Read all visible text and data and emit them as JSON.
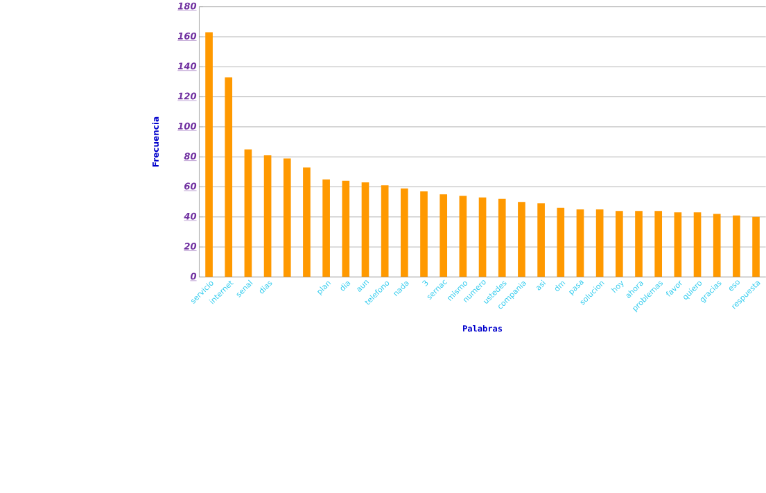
{
  "chart_data": {
    "type": "bar",
    "xlabel": "Palabras",
    "ylabel": "Frecuencia",
    "categories": [
      "servicio",
      "internet",
      "senal",
      "dias",
      null,
      null,
      "plan",
      "dia",
      "aun",
      "telefono",
      "nada",
      "3",
      "sernac",
      "mismo",
      "numero",
      "ustedes",
      "compania",
      "asi",
      "dm",
      "pasa",
      "solucion",
      "hoy",
      "ahora",
      "problemas",
      "favor",
      "quiero",
      "gracias",
      "eso",
      "respuesta"
    ],
    "values": [
      163,
      133,
      85,
      81,
      79,
      73,
      65,
      64,
      63,
      61,
      59,
      57,
      55,
      54,
      53,
      52,
      50,
      49,
      46,
      45,
      45,
      44,
      44,
      44,
      43,
      43,
      42,
      41,
      40
    ],
    "color": "#ff9900",
    "ylim": [
      0,
      180
    ],
    "yticks": [
      0,
      20,
      40,
      60,
      80,
      100,
      120,
      140,
      160,
      180
    ],
    "grid": "y"
  }
}
